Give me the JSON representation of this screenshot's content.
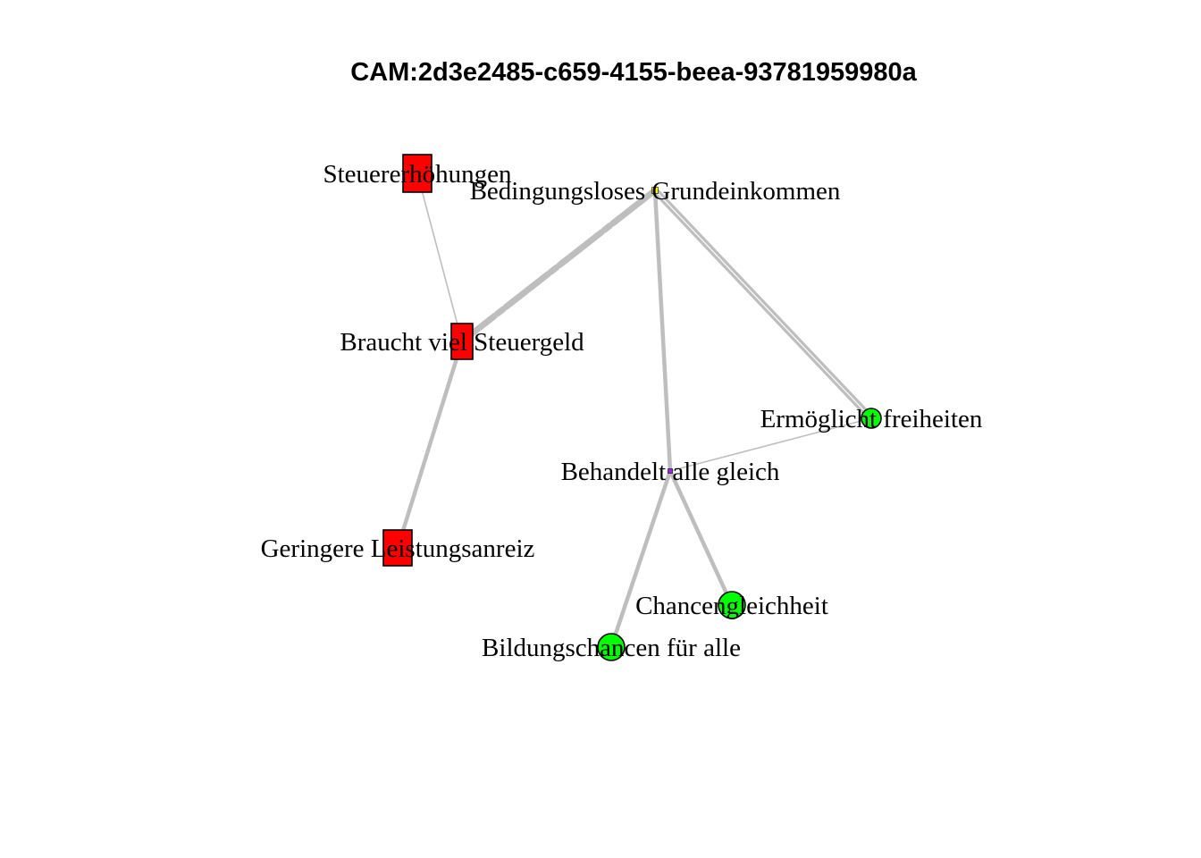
{
  "title": "CAM:2d3e2485-c659-4155-beea-93781959980a",
  "nodes": [
    {
      "id": "bgk",
      "label": "Bedingungsloses Grundeinkommen",
      "shape": "square",
      "color": "#FFFF00",
      "valence": "neutral"
    },
    {
      "id": "steuer",
      "label": "Steuererhöhungen",
      "shape": "rect",
      "color": "#FF0000",
      "valence": "negative"
    },
    {
      "id": "braucht",
      "label": "Braucht viel Steuergeld",
      "shape": "rect",
      "color": "#FF0000",
      "valence": "negative"
    },
    {
      "id": "geringere",
      "label": "Geringere Leistungsanreiz",
      "shape": "rect",
      "color": "#FF0000",
      "valence": "negative"
    },
    {
      "id": "ermoeglicht",
      "label": "Ermöglicht freiheiten",
      "shape": "circle",
      "color": "#00FF00",
      "valence": "positive"
    },
    {
      "id": "behandelt",
      "label": "Behandelt alle gleich",
      "shape": "square",
      "color": "#A020F0",
      "valence": "ambivalent"
    },
    {
      "id": "chancen",
      "label": "Chancengleichheit",
      "shape": "circle",
      "color": "#00FF00",
      "valence": "positive"
    },
    {
      "id": "bildung",
      "label": "Bildungschancen für alle",
      "shape": "circle",
      "color": "#00FF00",
      "valence": "positive"
    }
  ],
  "edges": [
    {
      "from": "bgk",
      "to": "braucht",
      "weight": 3,
      "style": "dashed-heavy"
    },
    {
      "from": "bgk",
      "to": "behandelt",
      "weight": 2,
      "style": "solid"
    },
    {
      "from": "bgk",
      "to": "ermoeglicht",
      "weight": 3,
      "style": "double"
    },
    {
      "from": "steuer",
      "to": "braucht",
      "weight": 1,
      "style": "solid"
    },
    {
      "from": "braucht",
      "to": "geringere",
      "weight": 2,
      "style": "solid"
    },
    {
      "from": "ermoeglicht",
      "to": "behandelt",
      "weight": 1,
      "style": "solid"
    },
    {
      "from": "behandelt",
      "to": "chancen",
      "weight": 2,
      "style": "solid"
    },
    {
      "from": "behandelt",
      "to": "bildung",
      "weight": 2,
      "style": "solid"
    }
  ],
  "colors": {
    "edge": "#BEBEBE",
    "node_stroke": "#000000",
    "background": "#FFFFFF"
  }
}
